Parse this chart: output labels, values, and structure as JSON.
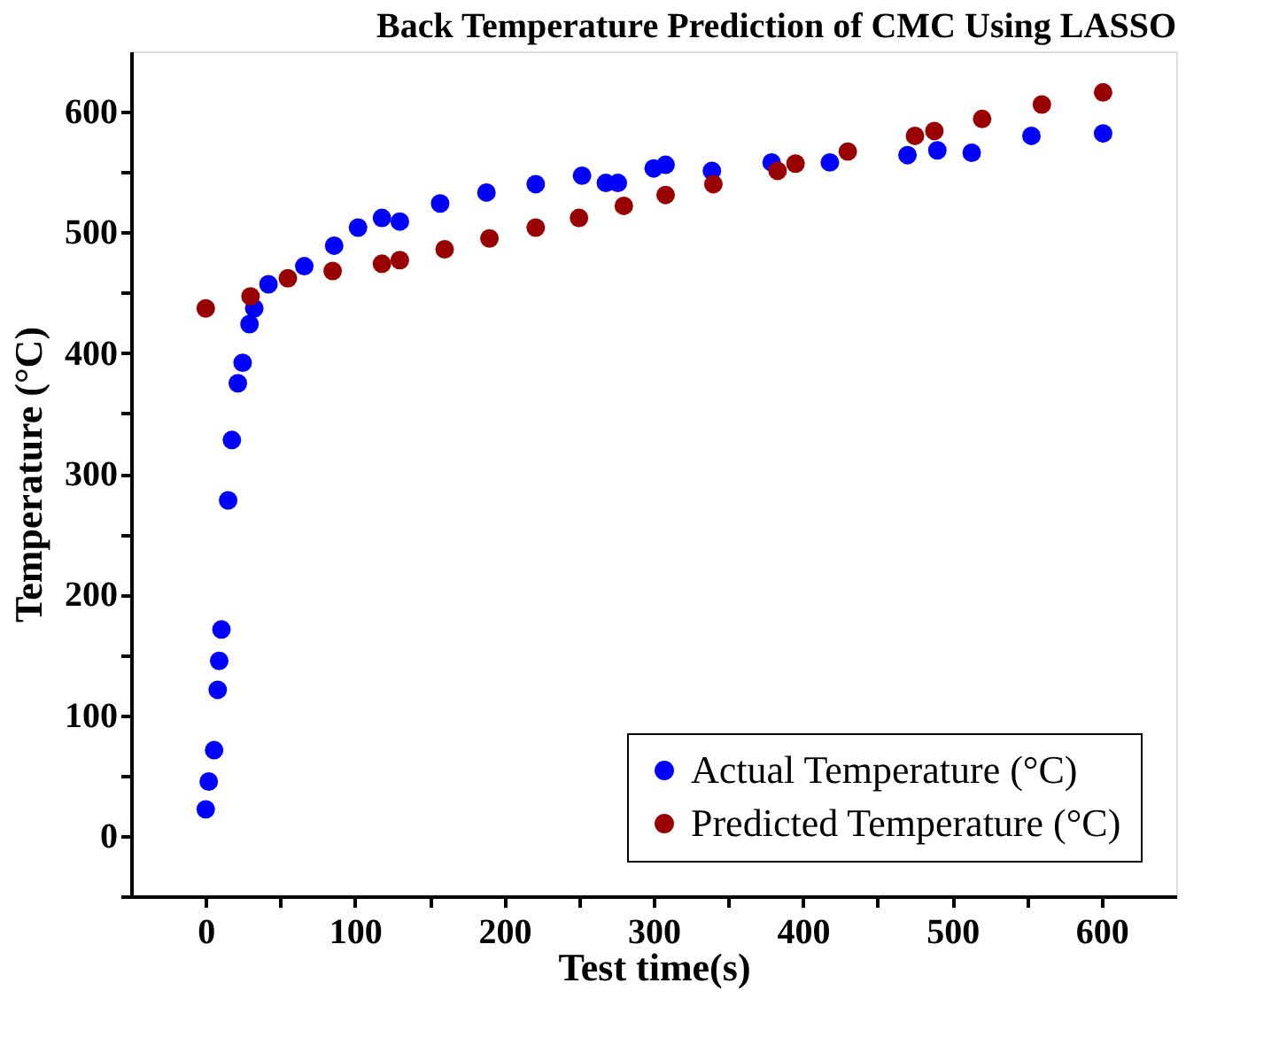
{
  "chart_data": {
    "type": "scatter",
    "title": "Back Temperature Prediction of CMC Using LASSO",
    "xlabel": "Test time(s)",
    "ylabel": "Temperature (°C)",
    "xlim": [
      -50,
      650
    ],
    "ylim": [
      -50,
      650
    ],
    "xticks": [
      0,
      {
        "value": 50,
        "label": null
      },
      100,
      {
        "value": 150,
        "label": null
      },
      200,
      {
        "value": 250,
        "label": null
      },
      300,
      {
        "value": 350,
        "label": null
      },
      400,
      {
        "value": 450,
        "label": null
      },
      500,
      {
        "value": 550,
        "label": null
      },
      600
    ],
    "yticks": [
      {
        "value": -50,
        "label": null
      },
      0,
      {
        "value": 50,
        "label": null
      },
      100,
      {
        "value": 150,
        "label": null
      },
      200,
      {
        "value": 250,
        "label": null
      },
      300,
      {
        "value": 350,
        "label": null
      },
      400,
      {
        "value": 450,
        "label": null
      },
      500,
      {
        "value": 550,
        "label": null
      },
      600
    ],
    "series": [
      {
        "name": "Actual Temperature (°C)",
        "color": "#0000ff",
        "x": [
          0,
          2,
          5.6,
          8,
          9,
          10.5,
          15,
          17.5,
          21.5,
          24.7,
          29.3,
          32.5,
          42,
          66,
          86,
          102,
          118,
          130,
          157,
          188,
          221,
          252,
          268,
          276,
          300,
          308,
          339,
          379,
          418,
          470,
          490,
          513,
          553,
          601
        ],
        "values": [
          22,
          45,
          71,
          121,
          145,
          171,
          278,
          328,
          375,
          392,
          424,
          437,
          457,
          472,
          489,
          504,
          512,
          509,
          524,
          533,
          540,
          547,
          541,
          541,
          553,
          556,
          551,
          558,
          558,
          564,
          568,
          566,
          580,
          582
        ]
      },
      {
        "name": "Predicted Temperature (°C)",
        "color": "#990000",
        "x": [
          0,
          30,
          55,
          85,
          118,
          130,
          160,
          190,
          221,
          250,
          280,
          308,
          340,
          383,
          395,
          430,
          475,
          488,
          520,
          560,
          601
        ],
        "values": [
          437,
          447,
          462,
          468,
          474,
          477,
          486,
          495,
          504,
          512,
          522,
          531,
          540,
          551,
          557,
          567,
          580,
          584,
          594,
          606,
          616
        ]
      }
    ],
    "marker": "circle",
    "legend": "bottom right",
    "grid": false
  }
}
